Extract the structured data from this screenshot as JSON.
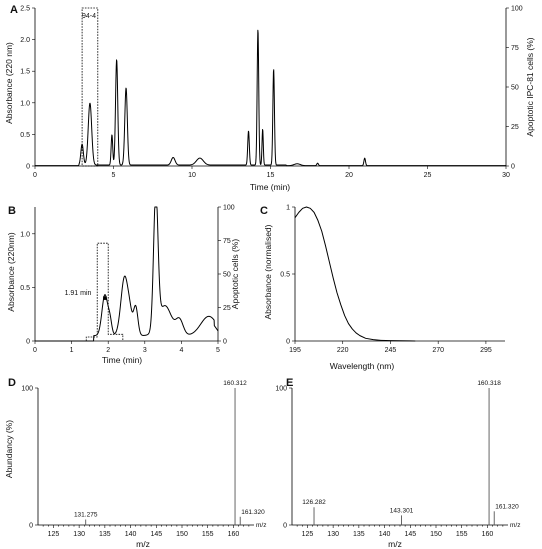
{
  "chart_data": [
    {
      "panel": "A",
      "type": "line",
      "xlabel": "Time (min)",
      "ylabel": "Absorbance (220 nm)",
      "y2label": "Apoptotic IPC-81 cells (%)",
      "xlim": [
        0,
        30
      ],
      "ylim": [
        0,
        2.5
      ],
      "y2lim": [
        0,
        100
      ],
      "xticks": [
        0,
        5,
        10,
        15,
        20,
        25,
        30
      ],
      "yticks": [
        0,
        0.5,
        1.0,
        1.5,
        2.0,
        2.5
      ],
      "y2ticks": [
        0,
        25,
        50,
        75,
        100
      ],
      "fraction_label": "94-4",
      "fraction_box": {
        "x": [
          3.0,
          4.0
        ],
        "y2": [
          0,
          100
        ]
      },
      "peaks": [
        {
          "t": 3.0,
          "h": 0.33,
          "w": 0.08
        },
        {
          "t": 3.5,
          "h": 0.98,
          "w": 0.11
        },
        {
          "t": 4.9,
          "h": 0.48,
          "w": 0.05
        },
        {
          "t": 5.2,
          "h": 1.67,
          "w": 0.07
        },
        {
          "t": 5.8,
          "h": 1.22,
          "w": 0.08
        },
        {
          "t": 8.8,
          "h": 0.12,
          "w": 0.12
        },
        {
          "t": 10.5,
          "h": 0.11,
          "w": 0.22
        },
        {
          "t": 13.6,
          "h": 0.54,
          "w": 0.05
        },
        {
          "t": 14.2,
          "h": 2.15,
          "w": 0.05
        },
        {
          "t": 14.5,
          "h": 0.57,
          "w": 0.04
        },
        {
          "t": 15.2,
          "h": 1.52,
          "w": 0.05
        },
        {
          "t": 16.7,
          "h": 0.03,
          "w": 0.2
        },
        {
          "t": 18.0,
          "h": 0.04,
          "w": 0.05
        },
        {
          "t": 21.0,
          "h": 0.12,
          "w": 0.05
        }
      ]
    },
    {
      "panel": "B",
      "type": "line",
      "xlabel": "Time (min)",
      "ylabel": "Absorbance (220nm)",
      "y2label": "Apoptotic cells (%)",
      "xlim": [
        0,
        5
      ],
      "ylim": [
        0,
        1.25
      ],
      "y2lim": [
        0,
        100
      ],
      "xticks": [
        0,
        1,
        2,
        3,
        4,
        5
      ],
      "yticks": [
        0,
        0.5,
        1.0
      ],
      "y2ticks": [
        0,
        25,
        50,
        75,
        100
      ],
      "annotation": "1.91 min",
      "apoptotic_bars": [
        {
          "x": [
            1.4,
            1.7
          ],
          "value": 3
        },
        {
          "x": [
            1.7,
            2.0
          ],
          "value": 73
        },
        {
          "x": [
            2.0,
            2.4
          ],
          "value": 5
        }
      ],
      "peaks": [
        {
          "t": 1.91,
          "h": 0.38,
          "w": 0.08
        },
        {
          "t": 2.05,
          "h": 0.12,
          "w": 0.05
        },
        {
          "t": 2.45,
          "h": 0.55,
          "w": 0.1
        },
        {
          "t": 2.6,
          "h": 0.12,
          "w": 0.06
        },
        {
          "t": 2.75,
          "h": 0.27,
          "w": 0.06
        },
        {
          "t": 3.3,
          "h": 1.25,
          "w": 0.06
        },
        {
          "t": 3.55,
          "h": 0.28,
          "w": 0.18
        },
        {
          "t": 3.95,
          "h": 0.14,
          "w": 0.1
        },
        {
          "t": 4.75,
          "h": 0.18,
          "w": 0.22
        }
      ]
    },
    {
      "panel": "C",
      "type": "line",
      "xlabel": "Wavelength (nm)",
      "ylabel": "Absorbance (normalised)",
      "xlim": [
        195,
        305
      ],
      "ylim": [
        0,
        1.0
      ],
      "xticks": [
        195,
        220,
        245,
        270,
        295
      ],
      "yticks": [
        0,
        0.5,
        1
      ],
      "x": [
        195,
        197,
        199,
        201,
        203,
        205,
        207,
        209,
        211,
        213,
        215,
        217,
        219,
        221,
        223,
        225,
        227,
        229,
        232,
        236,
        240,
        245,
        250,
        255,
        258
      ],
      "y": [
        0.92,
        0.96,
        0.99,
        1.0,
        0.99,
        0.96,
        0.9,
        0.82,
        0.71,
        0.59,
        0.47,
        0.36,
        0.27,
        0.19,
        0.13,
        0.09,
        0.06,
        0.04,
        0.02,
        0.01,
        0.005,
        0.003,
        0.002,
        0.001,
        0.0
      ]
    },
    {
      "panel": "D",
      "type": "bar",
      "xlabel": "m/z",
      "ylabel": "Abundancy (%)",
      "xlim": [
        122,
        164
      ],
      "ylim": [
        0,
        100
      ],
      "xticks": [
        125,
        130,
        135,
        140,
        145,
        150,
        155,
        160
      ],
      "yticks": [
        0,
        100
      ],
      "axis_unit": "m/z",
      "peaks": [
        {
          "mz": 131.275,
          "label": "131.275",
          "abundance": 4
        },
        {
          "mz": 160.312,
          "label": "160.312",
          "abundance": 100
        },
        {
          "mz": 161.32,
          "label": "161.320",
          "abundance": 6
        }
      ]
    },
    {
      "panel": "E",
      "type": "bar",
      "xlabel": "m/z",
      "ylabel": "",
      "xlim": [
        122,
        164
      ],
      "ylim": [
        0,
        100
      ],
      "xticks": [
        125,
        130,
        135,
        140,
        145,
        150,
        155,
        160
      ],
      "yticks": [
        0,
        100
      ],
      "axis_unit": "m/z",
      "peaks": [
        {
          "mz": 126.282,
          "label": "126.282",
          "abundance": 13
        },
        {
          "mz": 143.301,
          "label": "143.301",
          "abundance": 7
        },
        {
          "mz": 160.318,
          "label": "160.318",
          "abundance": 100
        },
        {
          "mz": 161.32,
          "label": "161.320",
          "abundance": 10
        }
      ]
    }
  ]
}
